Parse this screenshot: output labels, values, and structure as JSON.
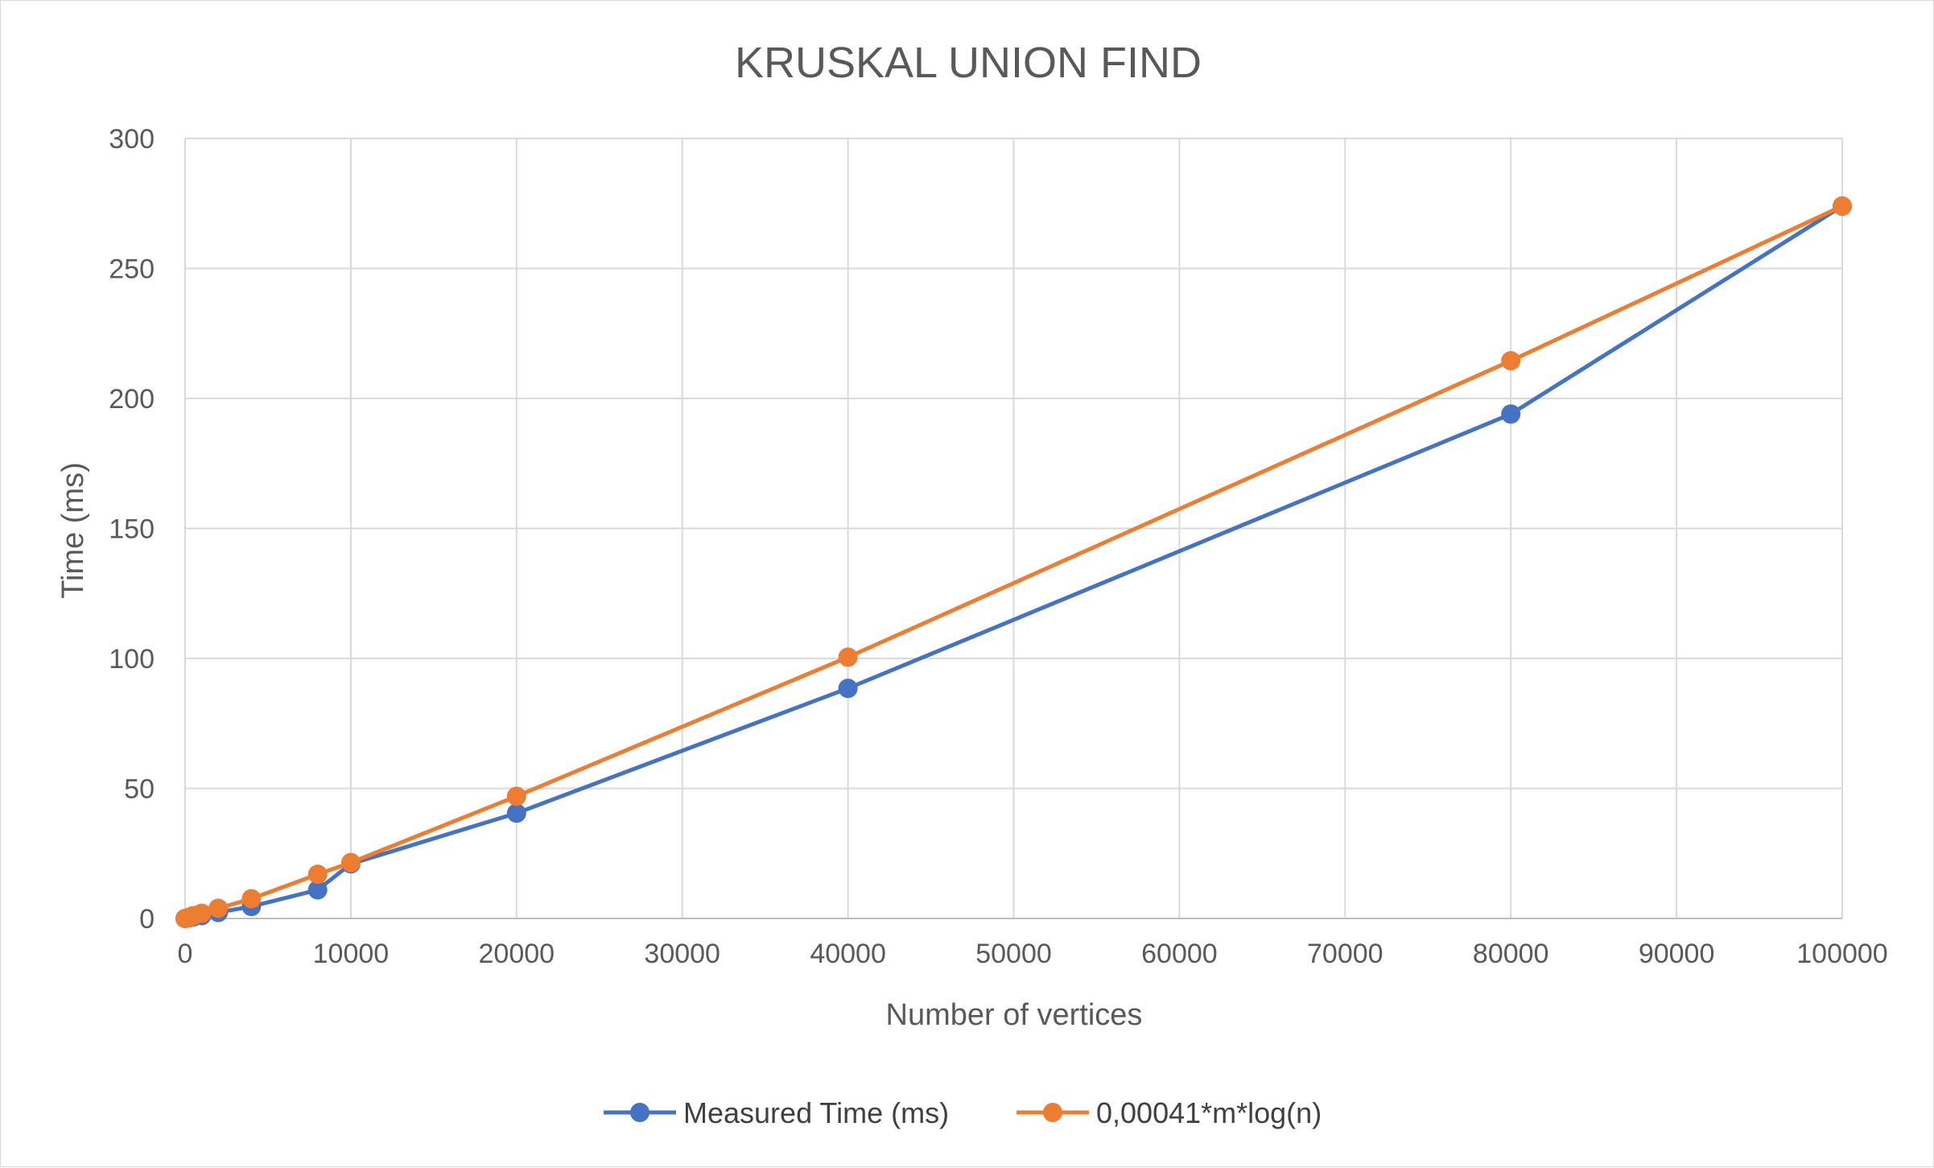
{
  "chart_data": {
    "type": "line",
    "title": "KRUSKAL UNION FIND",
    "xlabel": "Number of vertices",
    "ylabel": "Time (ms)",
    "xlim": [
      0,
      100000
    ],
    "ylim": [
      0,
      300
    ],
    "xticks": [
      0,
      10000,
      20000,
      30000,
      40000,
      50000,
      60000,
      70000,
      80000,
      90000,
      100000
    ],
    "yticks": [
      0,
      50,
      100,
      150,
      200,
      250,
      300
    ],
    "grid": true,
    "legend_position": "bottom",
    "series": [
      {
        "name": "Measured Time (ms)",
        "color": "#4472C4",
        "points": [
          [
            0,
            0
          ],
          [
            250,
            0.3
          ],
          [
            500,
            0.6
          ],
          [
            1000,
            1.1
          ],
          [
            2000,
            2.3
          ],
          [
            4000,
            4.6
          ],
          [
            8000,
            11
          ],
          [
            10000,
            21
          ],
          [
            20000,
            40.5
          ],
          [
            40000,
            88.5
          ],
          [
            80000,
            194
          ],
          [
            100000,
            274
          ]
        ]
      },
      {
        "name": "0,00041*m*log(n)",
        "color": "#ED7D31",
        "points": [
          [
            0,
            0
          ],
          [
            250,
            0.5
          ],
          [
            500,
            1.1
          ],
          [
            1000,
            2
          ],
          [
            2000,
            3.9
          ],
          [
            4000,
            7.6
          ],
          [
            8000,
            17
          ],
          [
            10000,
            21.5
          ],
          [
            20000,
            47
          ],
          [
            40000,
            100.5
          ],
          [
            80000,
            214.5
          ],
          [
            100000,
            274
          ]
        ]
      }
    ]
  }
}
